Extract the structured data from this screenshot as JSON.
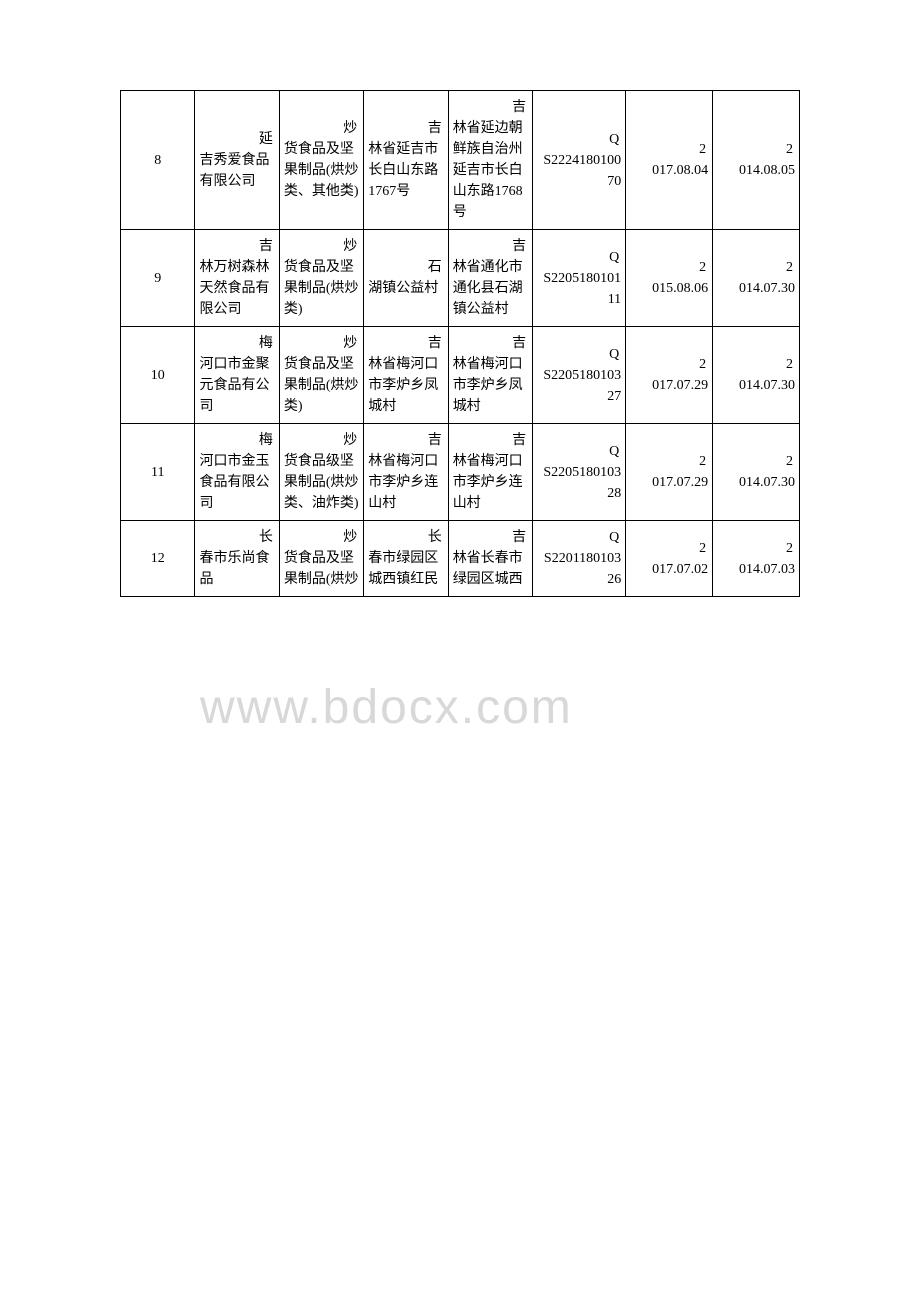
{
  "watermark": "www.bdocx.com",
  "table": {
    "rows": [
      {
        "num": "8",
        "company_lead": "延",
        "company_body": "吉秀爱食品有限公司",
        "category_lead": "炒",
        "category_body": "货食品及坚果制品(烘炒类、其他类)",
        "prodaddr_lead": "吉",
        "prodaddr_body": "林省延吉市长白山东路1767号",
        "regaddr_lead": "吉",
        "regaddr_body": "林省延边朝鲜族自治州延吉市长白山东路1768号",
        "cert_lead": "Q",
        "cert_body": "S222418010070",
        "date1_lead": "2",
        "date1_body": "017.08.04",
        "date2_lead": "2",
        "date2_body": "014.08.05"
      },
      {
        "num": "9",
        "company_lead": "吉",
        "company_body": "林万树森林天然食品有限公司",
        "category_lead": "炒",
        "category_body": "货食品及坚果制品(烘炒类)",
        "prodaddr_lead": "石",
        "prodaddr_body": "湖镇公益村",
        "regaddr_lead": "吉",
        "regaddr_body": "林省通化市通化县石湖镇公益村",
        "cert_lead": "Q",
        "cert_body": "S220518010111",
        "date1_lead": "2",
        "date1_body": "015.08.06",
        "date2_lead": "2",
        "date2_body": "014.07.30"
      },
      {
        "num": "10",
        "company_lead": "梅",
        "company_body": "河口市金聚元食品有公司",
        "category_lead": "炒",
        "category_body": "货食品及坚果制品(烘炒类)",
        "prodaddr_lead": "吉",
        "prodaddr_body": "林省梅河口市李炉乡凤城村",
        "regaddr_lead": "吉",
        "regaddr_body": "林省梅河口市李炉乡凤城村",
        "cert_lead": "Q",
        "cert_body": "S220518010327",
        "date1_lead": "2",
        "date1_body": "017.07.29",
        "date2_lead": "2",
        "date2_body": "014.07.30"
      },
      {
        "num": "11",
        "company_lead": "梅",
        "company_body": "河口市金玉食品有限公司",
        "category_lead": "炒",
        "category_body": "货食品级坚果制品(烘炒类、油炸类)",
        "prodaddr_lead": "吉",
        "prodaddr_body": "林省梅河口市李炉乡连山村",
        "regaddr_lead": "吉",
        "regaddr_body": "林省梅河口市李炉乡连山村",
        "cert_lead": "Q",
        "cert_body": "S220518010328",
        "date1_lead": "2",
        "date1_body": "017.07.29",
        "date2_lead": "2",
        "date2_body": "014.07.30"
      },
      {
        "num": "12",
        "company_lead": "长",
        "company_body": "春市乐尚食品",
        "category_lead": "炒",
        "category_body": "货食品及坚果制品(烘炒",
        "prodaddr_lead": "长",
        "prodaddr_body": "春市绿园区城西镇红民",
        "regaddr_lead": "吉",
        "regaddr_body": "林省长春市绿园区城西",
        "cert_lead": "Q",
        "cert_body": "S220118010326",
        "date1_lead": "2",
        "date1_body": "017.07.02",
        "date2_lead": "2",
        "date2_body": "014.07.03"
      }
    ]
  }
}
